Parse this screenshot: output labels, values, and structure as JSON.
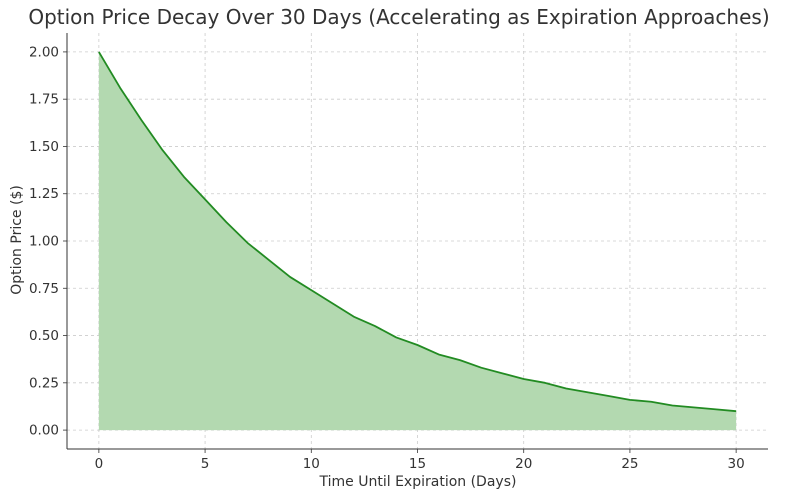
{
  "chart_data": {
    "type": "area",
    "title": "Option Price Decay Over 30 Days (Accelerating as Expiration Approaches)",
    "xlabel": "Time Until Expiration (Days)",
    "ylabel": "Option Price ($)",
    "xlim": [
      -1.5,
      31.5
    ],
    "ylim": [
      -0.1,
      2.1
    ],
    "xticks": [
      "0",
      "5",
      "10",
      "15",
      "20",
      "25",
      "30"
    ],
    "yticks": [
      "0.00",
      "0.25",
      "0.50",
      "0.75",
      "1.00",
      "1.25",
      "1.50",
      "1.75",
      "2.00"
    ],
    "grid": true,
    "series": [
      {
        "color": "#228b22",
        "fill": "#b3d9b0",
        "x": [
          0,
          1,
          2,
          3,
          4,
          5,
          6,
          7,
          8,
          9,
          10,
          11,
          12,
          13,
          14,
          15,
          16,
          17,
          18,
          19,
          20,
          21,
          22,
          23,
          24,
          25,
          26,
          27,
          28,
          29,
          30
        ],
        "y": [
          2.0,
          1.81,
          1.64,
          1.48,
          1.34,
          1.22,
          1.1,
          0.99,
          0.9,
          0.81,
          0.74,
          0.67,
          0.6,
          0.55,
          0.49,
          0.45,
          0.4,
          0.37,
          0.33,
          0.3,
          0.27,
          0.25,
          0.22,
          0.2,
          0.18,
          0.16,
          0.15,
          0.13,
          0.12,
          0.11,
          0.1
        ]
      }
    ]
  }
}
